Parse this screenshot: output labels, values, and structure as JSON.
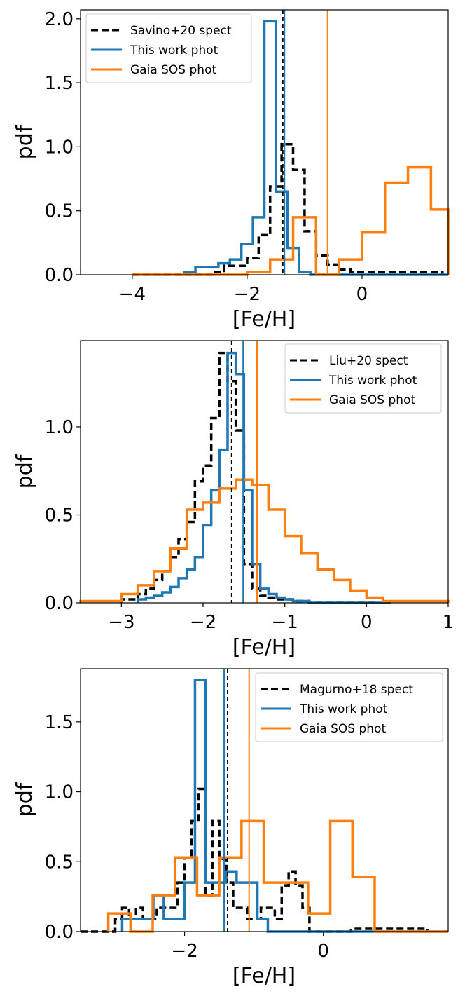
{
  "colors": {
    "spect": "#000000",
    "this_work": "#1f77b4",
    "gaia": "#ff7f0e"
  },
  "chart_data": [
    {
      "type": "step-histogram",
      "xlabel": "[Fe/H]",
      "ylabel": "pdf",
      "xlim": [
        -4.9,
        1.5
      ],
      "ylim": [
        0,
        2.07
      ],
      "xticks": [
        -4,
        -2,
        0
      ],
      "xtick_labels": [
        "−4",
        "−2",
        "0"
      ],
      "yticks": [
        0,
        0.5,
        1.0,
        1.5,
        2.0
      ],
      "ytick_labels": [
        "0.0",
        "0.5",
        "1.0",
        "1.5",
        "2.0"
      ],
      "legend_loc": "top-left",
      "series": [
        {
          "name": "Savino+20 spect",
          "color": "#000000",
          "style": "dashed",
          "x0": -4.0,
          "bin": 0.2,
          "values": [
            0,
            0,
            0,
            0,
            0,
            0,
            0,
            0.02,
            0.07,
            0.07,
            0.13,
            0.31,
            0.69,
            1.02,
            0.82,
            0.34,
            0.15,
            0.08,
            0.04,
            0.02,
            0.02,
            0.02,
            0.02,
            0.02,
            0.02,
            0.02,
            0.02
          ]
        },
        {
          "name": "This work phot",
          "color": "#1f77b4",
          "style": "solid",
          "x0": -3.1,
          "bin": 0.2,
          "values": [
            0.02,
            0.06,
            0.06,
            0.09,
            0.12,
            0.24,
            0.45,
            1.98,
            0.65,
            0.21,
            0.02,
            0,
            0,
            0,
            0,
            0,
            0,
            0,
            0,
            0,
            0,
            0,
            0,
            0
          ]
        },
        {
          "name": "Gaia SOS phot",
          "color": "#ff7f0e",
          "style": "solid",
          "x0": -4.0,
          "bin": 0.4,
          "values": [
            0,
            0,
            0,
            0,
            0,
            0.02,
            0.12,
            0.45,
            0,
            0.12,
            0.33,
            0.72,
            0.84,
            0.51,
            0,
            0,
            0,
            0
          ]
        }
      ],
      "vlines": [
        {
          "x": -1.38,
          "color": "#000000",
          "style": "dashed"
        },
        {
          "x": -1.35,
          "color": "#1f77b4",
          "style": "solid"
        },
        {
          "x": -0.6,
          "color": "#ff7f0e",
          "style": "solid"
        }
      ]
    },
    {
      "type": "step-histogram",
      "xlabel": "[Fe/H]",
      "ylabel": "pdf",
      "xlim": [
        -3.5,
        1.0
      ],
      "ylim": [
        0,
        1.49
      ],
      "xticks": [
        -3,
        -2,
        -1,
        0,
        1
      ],
      "xtick_labels": [
        "−3",
        "−2",
        "−1",
        "0",
        "1"
      ],
      "yticks": [
        0,
        0.5,
        1.0
      ],
      "ytick_labels": [
        "0.0",
        "0.5",
        "1.0"
      ],
      "legend_loc": "top-right",
      "series": [
        {
          "name": "Liu+20 spect",
          "color": "#000000",
          "style": "dashed",
          "x0": -3.0,
          "bin": 0.1,
          "values": [
            0.02,
            0.02,
            0.05,
            0.08,
            0.13,
            0.18,
            0.26,
            0.36,
            0.46,
            0.69,
            0.78,
            1.05,
            1.42,
            1.26,
            0.98,
            0.22,
            0.08,
            0.04,
            0.03,
            0.02,
            0.02,
            0.01,
            0.01,
            0,
            0,
            0,
            0,
            0,
            0,
            0,
            0
          ]
        },
        {
          "name": "This work phot",
          "color": "#1f77b4",
          "style": "solid",
          "x0": -2.8,
          "bin": 0.1,
          "values": [
            0.02,
            0.03,
            0.04,
            0.06,
            0.09,
            0.14,
            0.19,
            0.26,
            0.44,
            0.64,
            0.87,
            1.42,
            1.3,
            0.64,
            0.22,
            0.08,
            0.05,
            0.03,
            0.02,
            0.01,
            0.01,
            0,
            0,
            0,
            0,
            0,
            0,
            0,
            0,
            0,
            0
          ]
        },
        {
          "name": "Gaia SOS phot",
          "color": "#ff7f0e",
          "style": "solid",
          "x0": -3.6,
          "bin": 0.2,
          "values": [
            0.01,
            0.01,
            0.01,
            0.05,
            0.1,
            0.18,
            0.31,
            0.53,
            0.57,
            0.65,
            0.7,
            0.67,
            0.53,
            0.38,
            0.28,
            0.19,
            0.13,
            0.07,
            0.03,
            0.01,
            0.01,
            0.01,
            0.01,
            0.01,
            0.01
          ]
        }
      ],
      "vlines": [
        {
          "x": -1.65,
          "color": "#000000",
          "style": "dashed"
        },
        {
          "x": -1.51,
          "color": "#1f77b4",
          "style": "solid"
        },
        {
          "x": -1.34,
          "color": "#ff7f0e",
          "style": "solid"
        }
      ]
    },
    {
      "type": "step-histogram",
      "xlabel": "[Fe/H]",
      "ylabel": "pdf",
      "xlim": [
        -3.5,
        1.8
      ],
      "ylim": [
        0,
        1.88
      ],
      "xticks": [
        -2,
        0
      ],
      "xtick_labels": [
        "−2",
        "0"
      ],
      "yticks": [
        0,
        0.5,
        1.0,
        1.5
      ],
      "ytick_labels": [
        "0.0",
        "0.5",
        "1.0",
        "1.5"
      ],
      "legend_loc": "top-right",
      "series": [
        {
          "name": "Magurno+18 spect",
          "color": "#000000",
          "style": "dashed",
          "x0": -3.5,
          "bin": 0.1,
          "values": [
            0,
            0,
            0,
            0,
            0,
            0.09,
            0.17,
            0.09,
            0.17,
            0.09,
            0.09,
            0.17,
            0.17,
            0.17,
            0.35,
            0.53,
            0.79,
            1.02,
            0.26,
            0.79,
            0.52,
            0.35,
            0.17,
            0.17,
            0.09,
            0.09,
            0.17,
            0.17,
            0.09,
            0.33,
            0.43,
            0.33,
            0.17,
            0,
            0,
            0,
            0,
            0,
            0,
            0.02,
            0.02,
            0.02,
            0.02,
            0.02,
            0.02,
            0.02,
            0.02,
            0.02,
            0.02,
            0.02
          ]
        },
        {
          "name": "This work phot",
          "color": "#1f77b4",
          "style": "solid",
          "x0": -2.9,
          "bin": 0.15,
          "values": [
            0.09,
            0.09,
            0.09,
            0.26,
            0.09,
            0.09,
            0.35,
            1.8,
            0.35,
            0.35,
            0.43,
            0.35,
            0.35,
            0.09,
            0,
            0,
            0,
            0,
            0,
            0,
            0,
            0,
            0,
            0,
            0,
            0,
            0,
            0,
            0,
            0,
            0,
            0,
            0,
            0,
            0,
            0
          ]
        },
        {
          "name": "Gaia SOS phot",
          "color": "#ff7f0e",
          "style": "solid",
          "x0": -3.1,
          "bin": 0.32,
          "values": [
            0.13,
            0,
            0.26,
            0.53,
            0.26,
            0.53,
            0.79,
            0.35,
            0.35,
            0.13,
            0.79,
            0.39,
            0,
            0,
            0,
            0,
            0
          ]
        }
      ],
      "vlines": [
        {
          "x": -1.38,
          "color": "#000000",
          "style": "dashed"
        },
        {
          "x": -1.43,
          "color": "#1f77b4",
          "style": "solid"
        },
        {
          "x": -1.07,
          "color": "#ff7f0e",
          "style": "solid"
        }
      ]
    }
  ]
}
